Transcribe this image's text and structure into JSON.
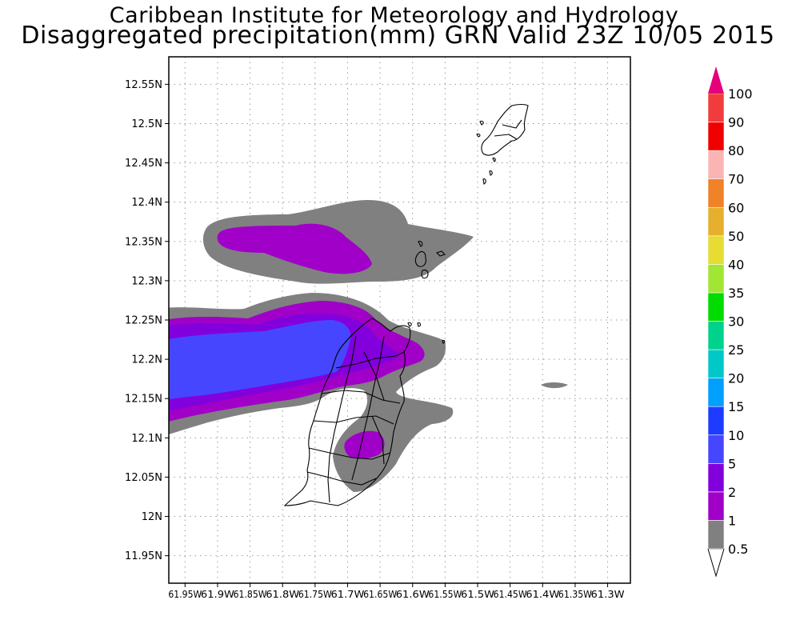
{
  "title": {
    "line1": "Caribbean Institute for Meteorology and Hydrology",
    "line2": "Disaggregated precipitation(mm) GRN Valid 23Z 10/05 2015"
  },
  "map": {
    "lat_labels": [
      "12.55N",
      "12.5N",
      "12.45N",
      "12.4N",
      "12.35N",
      "12.3N",
      "12.25N",
      "12.2N",
      "12.15N",
      "12.1N",
      "12.05N",
      "12N",
      "11.95N"
    ],
    "lon_labels": [
      "61.95W",
      "61.9W",
      "61.85W",
      "61.8W",
      "61.75W",
      "61.7W",
      "61.65W",
      "61.6W",
      "61.55W",
      "61.5W",
      "61.45W",
      "61.4W",
      "61.35W",
      "61.3W"
    ],
    "lat_range": [
      11.915,
      12.585
    ],
    "lon_range": [
      -61.975,
      -61.265
    ],
    "grid": true
  },
  "legend": {
    "values": [
      "0.5",
      "1",
      "2",
      "5",
      "10",
      "15",
      "20",
      "25",
      "30",
      "35",
      "40",
      "50",
      "60",
      "70",
      "80",
      "90",
      "100"
    ],
    "colors": [
      "#808080",
      "#a000c8",
      "#8200dc",
      "#4646ff",
      "#1e3cff",
      "#00a0ff",
      "#00c8c8",
      "#00d28c",
      "#00dc00",
      "#a0e632",
      "#e6dc32",
      "#e6af2d",
      "#f08228",
      "#fab4b4",
      "#f00000",
      "#f03c3c",
      "#e6007a"
    ]
  },
  "precip_areas": [
    {
      "region": "north band",
      "level": "0.5"
    },
    {
      "region": "north band core",
      "level": "1"
    },
    {
      "region": "central band",
      "level": "0.5"
    },
    {
      "region": "central band",
      "level": "1"
    },
    {
      "region": "central band",
      "level": "2"
    },
    {
      "region": "central band core",
      "level": "5"
    },
    {
      "region": "southeast Grenada",
      "level": "0.5"
    },
    {
      "region": "southeast Grenada core",
      "level": "1"
    },
    {
      "region": "east small patch",
      "level": "0.5"
    }
  ]
}
